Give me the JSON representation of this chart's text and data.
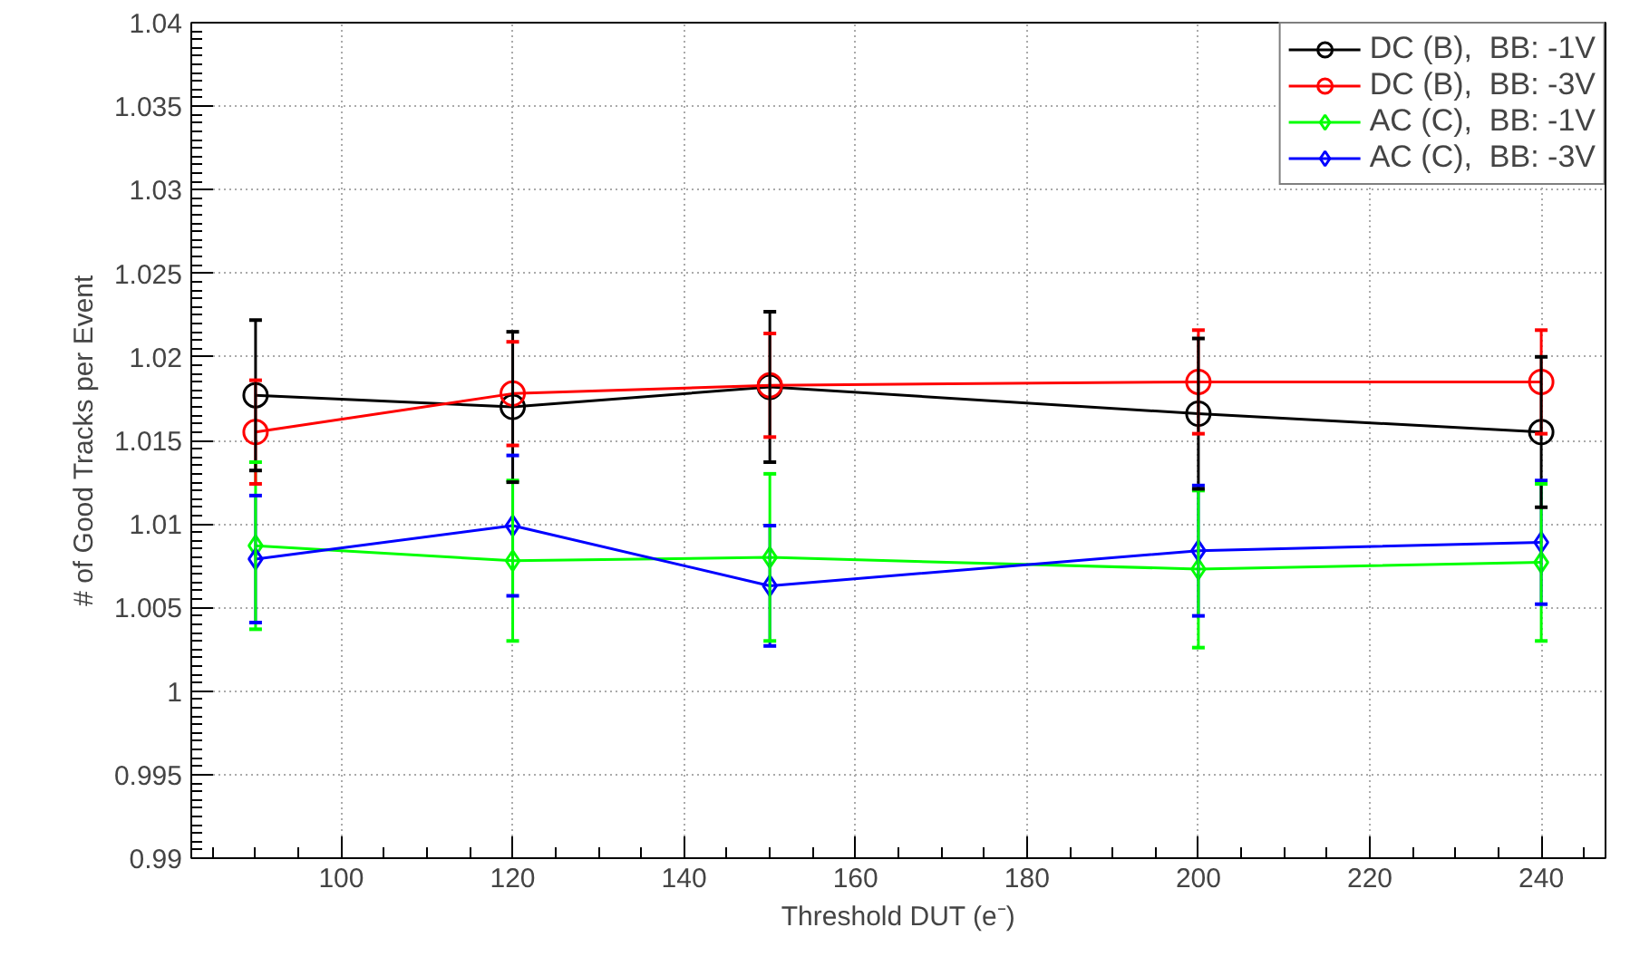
{
  "chart_data": {
    "type": "line",
    "xlabel": "Threshold DUT (e⁻)",
    "ylabel": "# of Good Tracks per Event",
    "x": [
      90,
      120,
      150,
      200,
      240
    ],
    "xlim": [
      82.5,
      247.5
    ],
    "xticks": [
      100,
      120,
      140,
      160,
      180,
      200,
      220,
      240
    ],
    "ylim": [
      0.99,
      1.04
    ],
    "yticks": [
      0.99,
      0.995,
      1,
      1.005,
      1.01,
      1.015,
      1.02,
      1.025,
      1.03,
      1.035,
      1.04
    ],
    "grid": true,
    "legend": "top right",
    "line_style": "solid",
    "series": [
      {
        "name": "DC (B),  BB: -1V",
        "color": "#000000",
        "marker": "circle",
        "values": [
          1.0177,
          1.017,
          1.0182,
          1.0166,
          1.0155
        ],
        "errors": [
          0.0045,
          0.0045,
          0.0045,
          0.0045,
          0.0045
        ]
      },
      {
        "name": "DC (B),  BB: -3V",
        "color": "#ff0000",
        "marker": "circle",
        "values": [
          1.0155,
          1.0178,
          1.0183,
          1.0185,
          1.0185
        ],
        "errors": [
          0.0031,
          0.0031,
          0.0031,
          0.0031,
          0.0031
        ]
      },
      {
        "name": "AC (C),  BB: -1V",
        "color": "#00ff00",
        "marker": "diamond",
        "values": [
          1.0087,
          1.0078,
          1.008,
          1.0073,
          1.0077
        ],
        "errors": [
          0.005,
          0.0048,
          0.005,
          0.0047,
          0.0047
        ]
      },
      {
        "name": "AC (C),  BB: -3V",
        "color": "#0000ff",
        "marker": "diamond",
        "values": [
          1.0079,
          1.0099,
          1.0063,
          1.0084,
          1.0089
        ],
        "errors": [
          0.0038,
          0.0042,
          0.0036,
          0.0039,
          0.0037
        ]
      }
    ]
  }
}
